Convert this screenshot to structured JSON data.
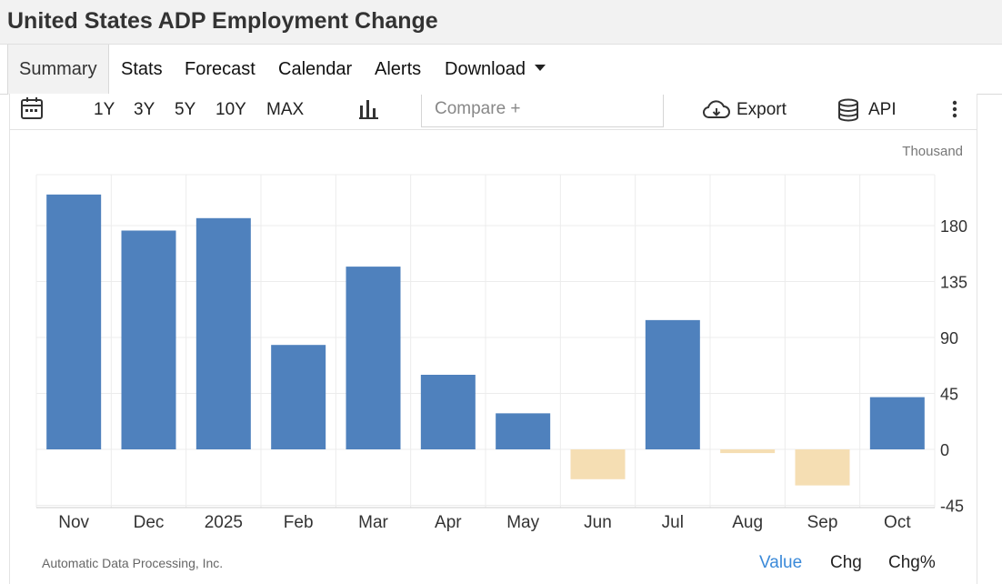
{
  "header": {
    "title": "United States ADP Employment Change"
  },
  "tabs": [
    "Summary",
    "Stats",
    "Forecast",
    "Calendar",
    "Alerts",
    "Download"
  ],
  "toolbar": {
    "ranges": [
      "1Y",
      "3Y",
      "5Y",
      "10Y",
      "MAX"
    ],
    "compare_placeholder": "Compare +",
    "export_label": "Export",
    "api_label": "API"
  },
  "chart": {
    "unit": "Thousand",
    "source": "Automatic Data Processing, Inc.",
    "view_toggles": [
      "Value",
      "Chg",
      "Chg%"
    ]
  },
  "colors": {
    "positive": "#4f81bd",
    "negative": "#f5deb3",
    "active_toggle": "#3b8ad9"
  },
  "chart_data": {
    "type": "bar",
    "categories": [
      "Nov",
      "Dec",
      "2025",
      "Feb",
      "Mar",
      "Apr",
      "May",
      "Jun",
      "Jul",
      "Aug",
      "Sep",
      "Oct"
    ],
    "values": [
      205,
      176,
      186,
      84,
      147,
      60,
      29,
      -24,
      104,
      -3,
      -29,
      42
    ],
    "ylim": [
      -45,
      225
    ],
    "yticks": [
      -45,
      0,
      45,
      90,
      135,
      180
    ],
    "ylabel": "Thousand",
    "grid": true
  }
}
